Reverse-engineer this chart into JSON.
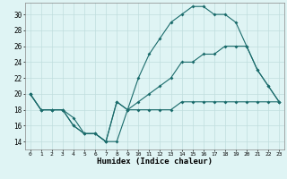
{
  "xlabel": "Humidex (Indice chaleur)",
  "ylabel": "",
  "bg_color": "#dff4f4",
  "grid_color": "#c0dede",
  "line_color": "#1a6b6b",
  "xlim": [
    -0.5,
    23.5
  ],
  "ylim": [
    13,
    31.5
  ],
  "xticks": [
    0,
    1,
    2,
    3,
    4,
    5,
    6,
    7,
    8,
    9,
    10,
    11,
    12,
    13,
    14,
    15,
    16,
    17,
    18,
    19,
    20,
    21,
    22,
    23
  ],
  "yticks": [
    14,
    16,
    18,
    20,
    22,
    24,
    26,
    28,
    30
  ],
  "series": [
    {
      "x": [
        0,
        1,
        2,
        3,
        4,
        5,
        6,
        7,
        8,
        9,
        10,
        11,
        12,
        13,
        14,
        15,
        16,
        17,
        18,
        19,
        20,
        21,
        22,
        23
      ],
      "y": [
        20,
        18,
        18,
        18,
        17,
        15,
        15,
        14,
        14,
        18,
        18,
        18,
        18,
        18,
        19,
        19,
        19,
        19,
        19,
        19,
        19,
        19,
        19,
        19
      ]
    },
    {
      "x": [
        0,
        1,
        2,
        3,
        4,
        5,
        6,
        7,
        8,
        9,
        10,
        11,
        12,
        13,
        14,
        15,
        16,
        17,
        18,
        19,
        20,
        21,
        22,
        23
      ],
      "y": [
        20,
        18,
        18,
        18,
        16,
        15,
        15,
        14,
        19,
        18,
        19,
        20,
        21,
        22,
        24,
        24,
        25,
        25,
        26,
        26,
        26,
        23,
        21,
        19
      ]
    },
    {
      "x": [
        0,
        1,
        2,
        3,
        4,
        5,
        6,
        7,
        8,
        9,
        10,
        11,
        12,
        13,
        14,
        15,
        16,
        17,
        18,
        19,
        20,
        21,
        22,
        23
      ],
      "y": [
        20,
        18,
        18,
        18,
        16,
        15,
        15,
        14,
        19,
        18,
        22,
        25,
        27,
        29,
        30,
        31,
        31,
        30,
        30,
        29,
        26,
        23,
        21,
        19
      ]
    }
  ]
}
